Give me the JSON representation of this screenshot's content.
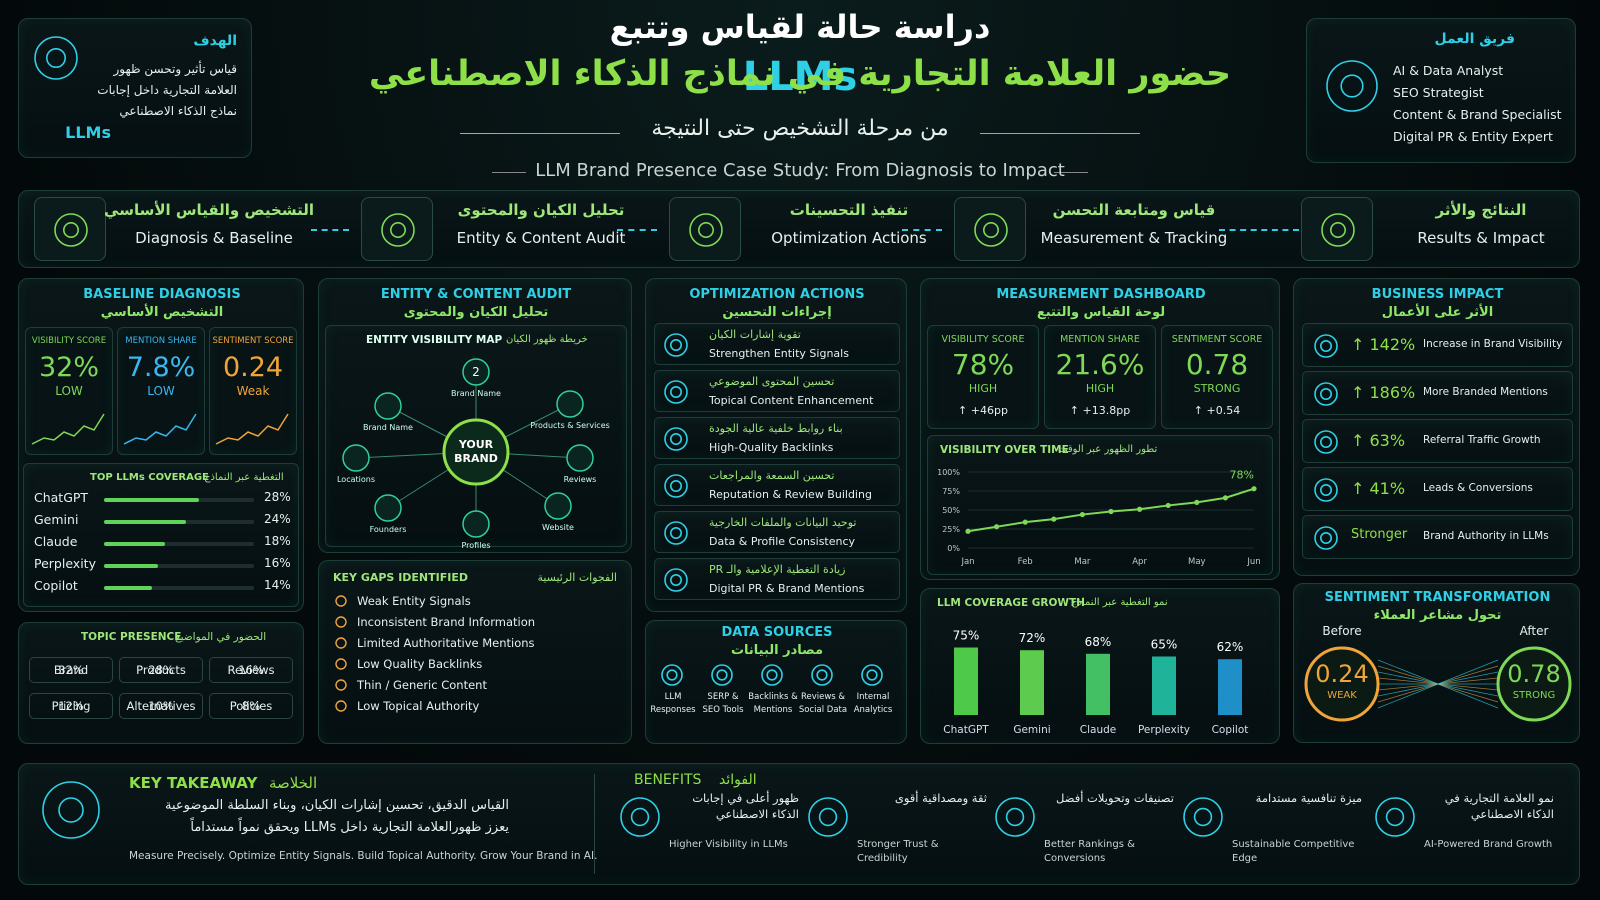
{
  "header": {
    "title_line1": "دراسة حالة لقياس وتتبع",
    "title_line2": "حضور العلامة التجارية في نماذج الذكاء الاصطناعي",
    "title_highlight": "LLMs",
    "subtitle_ar": "من مرحلة التشخيص حتى النتيجة",
    "subtitle_en": "LLM Brand Presence Case Study: From Diagnosis to Impact"
  },
  "goal": {
    "label": "الهدف",
    "text": "قياس تأثير وتحسن ظهور العلامة التجارية داخل إجابات نماذج الذكاء الاصطناعي",
    "highlight": "LLMs"
  },
  "team": {
    "label": "فريق العمل",
    "members": [
      "AI & Data Analyst",
      "SEO Strategist",
      "Content & Brand Specialist",
      "Digital PR & Entity Expert"
    ]
  },
  "steps": [
    {
      "ar": "التشخيص والقياس الأساسي",
      "en": "Diagnosis & Baseline"
    },
    {
      "ar": "تحليل الكيان والمحتوى",
      "en": "Entity & Content Audit"
    },
    {
      "ar": "تنفيذ التحسينات",
      "en": "Optimization Actions"
    },
    {
      "ar": "قياس ومتابعة التحسن",
      "en": "Measurement & Tracking"
    },
    {
      "ar": "النتائج والأثر",
      "en": "Results & Impact"
    }
  ],
  "baseline": {
    "title_en": "BASELINE DIAGNOSIS",
    "title_ar": "التشخيص الأساسي",
    "scores": [
      {
        "label": "VISIBILITY SCORE",
        "value": "32%",
        "status": "LOW",
        "color": "#7ed957"
      },
      {
        "label": "MENTION SHARE",
        "value": "7.8%",
        "status": "LOW",
        "color": "#39b7f0"
      },
      {
        "label": "SENTIMENT SCORE",
        "value": "0.24",
        "status": "Weak",
        "color": "#f0a43a"
      }
    ],
    "coverage": {
      "title_en": "TOP LLMs COVERAGE",
      "title_ar": "التغطية عبر النماذج",
      "names": [
        "ChatGPT",
        "Gemini",
        "Claude",
        "Perplexity",
        "Copilot"
      ],
      "values": [
        28,
        24,
        18,
        16,
        14
      ],
      "value_labels": [
        "28%",
        "24%",
        "18%",
        "16%",
        "14%"
      ],
      "color": "#5fd35a"
    },
    "topics": {
      "title_en": "TOPIC PRESENCE",
      "title_ar": "الحضور في المواضيع",
      "items": [
        {
          "name": "Brand",
          "value": "32%"
        },
        {
          "name": "Products",
          "value": "28%"
        },
        {
          "name": "Reviews",
          "value": "16%"
        },
        {
          "name": "Pricing",
          "value": "12%"
        },
        {
          "name": "Alternatives",
          "value": "10%"
        },
        {
          "name": "Policies",
          "value": "8%"
        }
      ]
    }
  },
  "audit": {
    "title_en": "ENTITY & CONTENT AUDIT",
    "title_ar": "تحليل الكيان والمحتوى",
    "map_title_en": "ENTITY VISIBILITY MAP",
    "map_title_ar": "خريطة ظهور الكيان",
    "center": "YOUR BRAND",
    "badge": "2",
    "nodes": [
      "Brand Name",
      "Products & Services",
      "Reviews",
      "Website",
      "Profiles",
      "Founders",
      "Locations",
      "Brand Name"
    ],
    "gaps": {
      "title_en": "KEY GAPS IDENTIFIED",
      "title_ar": "الفجوات الرئيسية",
      "items": [
        "Weak Entity Signals",
        "Inconsistent Brand Information",
        "Limited Authoritative Mentions",
        "Low Quality Backlinks",
        "Thin / Generic Content",
        "Low Topical Authority"
      ]
    }
  },
  "optimization": {
    "title_en": "OPTIMIZATION ACTIONS",
    "title_ar": "إجراءات التحسين",
    "items": [
      {
        "ar": "تقوية إشارات الكيان",
        "en": "Strengthen Entity Signals"
      },
      {
        "ar": "تحسين المحتوى الموضوعي",
        "en": "Topical Content Enhancement"
      },
      {
        "ar": "بناء روابط خلفية عالية الجودة",
        "en": "High-Quality Backlinks"
      },
      {
        "ar": "تحسين السمعة والمراجعات",
        "en": "Reputation & Review Building"
      },
      {
        "ar": "توحيد البيانات والملفات الخارجية",
        "en": "Data & Profile Consistency"
      },
      {
        "ar": "زيادة التغطية الإعلامية والـ PR",
        "en": "Digital PR & Brand Mentions"
      }
    ],
    "sources": {
      "title_en": "DATA SOURCES",
      "title_ar": "مصادر البيانات",
      "items": [
        "LLM Responses",
        "SERP & SEO Tools",
        "Backlinks & Mentions",
        "Reviews & Social Data",
        "Internal Analytics"
      ]
    }
  },
  "measurement": {
    "title_en": "MEASUREMENT DASHBOARD",
    "title_ar": "لوحة القياس والتتبع",
    "scores": [
      {
        "label": "VISIBILITY SCORE",
        "value": "78%",
        "status": "HIGH",
        "change": "↑ +46pp",
        "color": "#7ed957"
      },
      {
        "label": "MENTION SHARE",
        "value": "21.6%",
        "status": "HIGH",
        "change": "↑ +13.8pp",
        "color": "#7ed957"
      },
      {
        "label": "SENTIMENT SCORE",
        "value": "0.78",
        "status": "STRONG",
        "change": "↑ +0.54",
        "color": "#7ed957"
      }
    ],
    "visibility_chart": {
      "type": "line",
      "title_en": "VISIBILITY OVER TIME",
      "title_ar": "تطور الظهور عبر الوقت",
      "x": [
        "Jan",
        null,
        "Feb",
        null,
        "Mar",
        null,
        "Apr",
        null,
        "May",
        null,
        "Jun"
      ],
      "values": [
        22,
        28,
        34,
        38,
        44,
        48,
        51,
        56,
        60,
        66,
        78
      ],
      "annotation": "78%",
      "color": "#7ed957",
      "ylim": [
        0,
        100
      ],
      "yticks": [
        {
          "value": 0,
          "label": "0%"
        },
        {
          "value": 25,
          "label": "25%"
        },
        {
          "value": 50,
          "label": "50%"
        },
        {
          "value": 75,
          "label": "75%"
        },
        {
          "value": 100,
          "label": "100%"
        }
      ],
      "grid": true
    },
    "coverage_growth": {
      "type": "bar",
      "title_en": "LLM COVERAGE GROWTH",
      "title_ar": "نمو التغطية عبر النماذج",
      "categories": [
        "ChatGPT",
        "Gemini",
        "Claude",
        "Perplexity",
        "Copilot"
      ],
      "values": [
        75,
        72,
        68,
        65,
        62
      ],
      "value_labels": [
        "75%",
        "72%",
        "68%",
        "65%",
        "62%"
      ],
      "colors": [
        "#4fc94a",
        "#5ccb4e",
        "#43c064",
        "#1fb39a",
        "#1e8fc7"
      ]
    }
  },
  "impact": {
    "title_en": "BUSINESS IMPACT",
    "title_ar": "الأثر على الأعمال",
    "items": [
      {
        "value": "↑ 142%",
        "text": "Increase in Brand Visibility"
      },
      {
        "value": "↑ 186%",
        "text": "More Branded Mentions"
      },
      {
        "value": "↑ 63%",
        "text": "Referral Traffic Growth"
      },
      {
        "value": "↑ 41%",
        "text": "Leads & Conversions"
      },
      {
        "value": "Stronger",
        "text": "Brand Authority in LLMs"
      }
    ],
    "sentiment": {
      "title_en": "SENTIMENT TRANSFORMATION",
      "title_ar": "تحول مشاعر العملاء",
      "before": {
        "label": "Before",
        "value": "0.24",
        "status": "WEAK"
      },
      "after": {
        "label": "After",
        "value": "0.78",
        "status": "STRONG"
      }
    }
  },
  "takeaway": {
    "label_en": "KEY TAKEAWAY",
    "label_ar": "الخلاصة",
    "line1": "القياس الدقيق، تحسين إشارات الكيان، وبناء السلطة الموضوعية",
    "line2": "يعزز ظهورالعلامة التجارية داخل LLMs ويحقق نمواً مستداماً",
    "text_en": "Measure Precisely. Optimize Entity Signals. Build Topical Authority. Grow Your Brand in AI."
  },
  "benefits": {
    "label_en": "BENEFITS",
    "label_ar": "الفوائد",
    "items": [
      {
        "ar": "ظهور أعلى في إجابات الذكاء الاصطناعي",
        "en": "Higher Visibility in LLMs"
      },
      {
        "ar": "ثقة ومصداقية أقوى",
        "en": "Stronger Trust & Credibility"
      },
      {
        "ar": "تصنيفات وتحويلات أفضل",
        "en": "Better Rankings & Conversions"
      },
      {
        "ar": "ميزة تنافسية مستدامة",
        "en": "Sustainable Competitive Edge"
      },
      {
        "ar": "نمو العلامة التجارية في الذكاء الاصطناعي",
        "en": "AI-Powered Brand Growth"
      }
    ]
  }
}
